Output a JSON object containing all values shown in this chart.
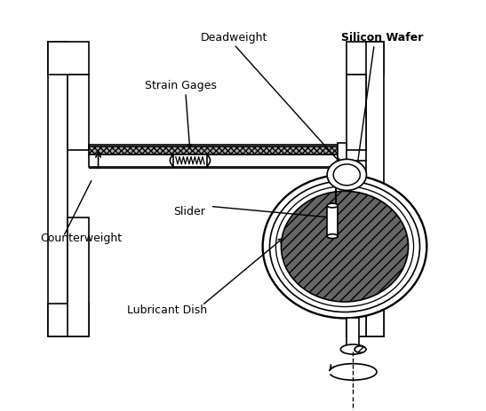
{
  "bg_color": "#ffffff",
  "line_color": "#000000",
  "labels": {
    "deadweight": "Deadweight",
    "silicon_wafer": "Silicon Wafer",
    "strain_gages": "Strain Gages",
    "slider": "Slider",
    "counterweight": "Counterweight",
    "lubricant_dish": "Lubricant Dish"
  },
  "lw": 1.2,
  "fontsize": 9.0
}
